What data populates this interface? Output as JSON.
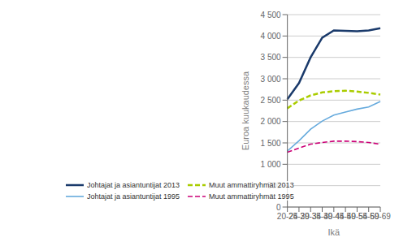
{
  "chart_data": {
    "type": "line",
    "xlabel": "Ikä",
    "ylabel": "Euroa kuukaudessa",
    "categories": [
      "20-24",
      "25-29",
      "30-34",
      "35-39",
      "40-44",
      "45-49",
      "50-54",
      "55-59",
      "60-69"
    ],
    "series": [
      {
        "name": "Johtajat ja asiantuntijat 2013",
        "color": "#1a3a6b",
        "line_style": "solid",
        "marker": "none",
        "values": [
          2520,
          2900,
          3500,
          3960,
          4130,
          4120,
          4110,
          4130,
          4180
        ]
      },
      {
        "name": "Muut ammattiryhmät 2013",
        "color": "#aacc00",
        "line_style": "dashed",
        "marker": "none",
        "values": [
          2310,
          2490,
          2610,
          2680,
          2710,
          2720,
          2700,
          2670,
          2630
        ]
      },
      {
        "name": "Johtajat ja asiantuntijat 1995",
        "color": "#66aadd",
        "line_style": "solid",
        "marker": "none",
        "values": [
          1310,
          1550,
          1820,
          2010,
          2150,
          2220,
          2290,
          2340,
          2470
        ]
      },
      {
        "name": "Muut ammattiryhmät 1995",
        "color": "#cc0077",
        "line_style": "dashed",
        "marker": "none",
        "values": [
          1280,
          1380,
          1470,
          1510,
          1540,
          1540,
          1530,
          1510,
          1470
        ]
      }
    ],
    "ylim": [
      0,
      4500
    ],
    "yticks": [
      0,
      500,
      {
        "value": 1000,
        "label": "1 000"
      },
      {
        "value": 1500,
        "label": "1 500"
      },
      {
        "value": 2000,
        "label": "2 000"
      },
      {
        "value": 2500,
        "label": "2 500"
      },
      {
        "value": 3000,
        "label": "3 000"
      },
      {
        "value": 3500,
        "label": "3 500"
      },
      {
        "value": 4000,
        "label": "4 000"
      },
      {
        "value": 4500,
        "label": "4 500"
      }
    ],
    "grid": true,
    "legend": "lower left"
  }
}
